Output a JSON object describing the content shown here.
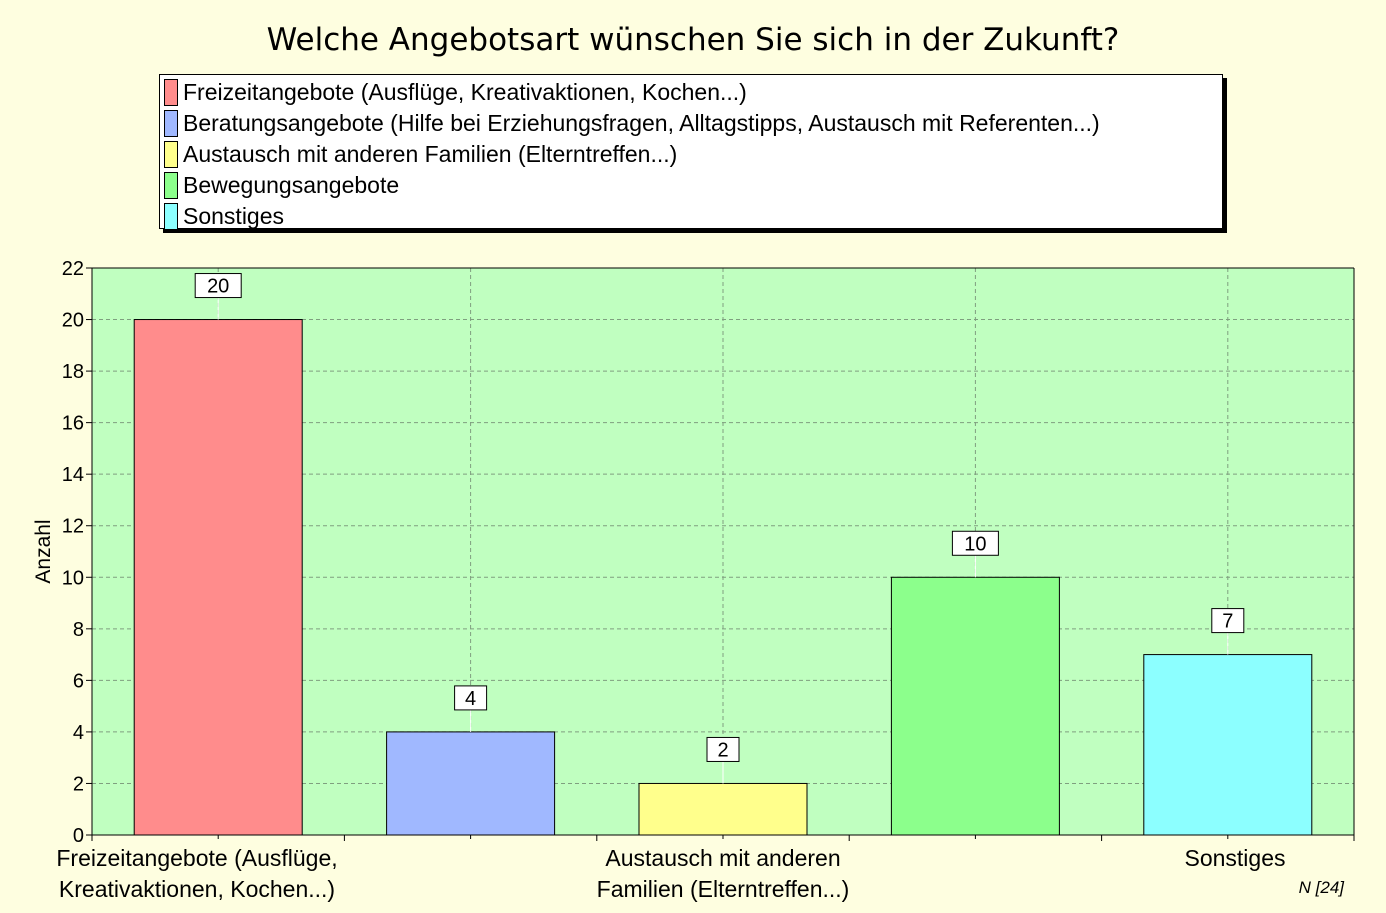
{
  "chart_data": {
    "type": "bar",
    "title": "Welche Angebotsart wünschen Sie sich in der Zukunft?",
    "ylabel": "Anzahl",
    "ylim": [
      0,
      22
    ],
    "ytick_step": 2,
    "grid": true,
    "legend_position": "top",
    "categories": [
      "Freizeitangebote (Ausflüge, Kreativaktionen, Kochen...)",
      "Beratungsangebote (Hilfe bei Erziehungsfragen, Alltagstipps, Austausch mit Referenten...)",
      "Austausch mit anderen Familien (Elterntreffen...)",
      "Bewegungsangebote",
      "Sonstiges"
    ],
    "values": [
      20,
      4,
      2,
      10,
      7
    ],
    "colors": [
      "#ff8c8c",
      "#a0b8ff",
      "#ffff8c",
      "#8cff8c",
      "#8cffff"
    ],
    "xtick_labels": [
      [
        "Freizeitangebote (Ausflüge,",
        "Kreativaktionen, Kochen...)"
      ],
      [],
      [
        "Austausch mit anderen",
        "Familien (Elterntreffen...)"
      ],
      [],
      [
        "Sonstiges"
      ]
    ],
    "n_label": "N [24]"
  },
  "style": {
    "page_background": "#fefee0",
    "plot_background": "#c0ffc0",
    "grid_color": "#7f9f7f"
  }
}
